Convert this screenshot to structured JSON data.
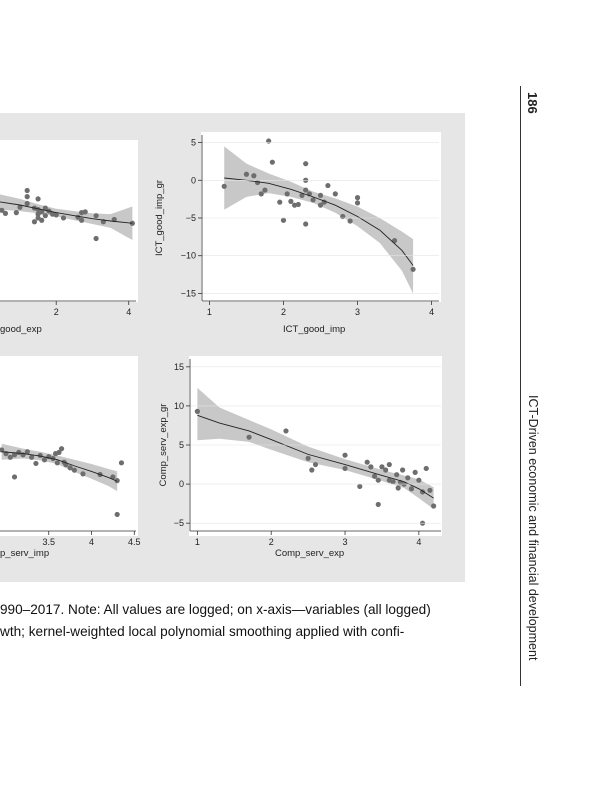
{
  "page": {
    "number": "186",
    "running_head": "ICT-Driven economic and financial development",
    "caption_line_1": "990–2017. Note: All values are logged; on x-axis—variables (all logged)",
    "caption_line_2": "wth; kernel-weighted local polynomial smoothing applied with confi-"
  },
  "colors": {
    "panel_bg": "#e6e6e6",
    "plot_bg": "#ffffff",
    "ci_band": "#c8c8c8",
    "points": "#6e6e6e",
    "fit_line": "#222222"
  },
  "chart_data": [
    {
      "type": "scatter",
      "title": "",
      "xlabel": "good_exp",
      "ylabel": "",
      "xlim": [
        0.45,
        4.2
      ],
      "ylim": [
        -15,
        6
      ],
      "xticks": [
        2,
        4
      ],
      "yticks": [],
      "points": [
        [
          1.2,
          -0.5
        ],
        [
          1.2,
          -1.3
        ],
        [
          1.2,
          -2.2
        ],
        [
          0.9,
          -3.4
        ],
        [
          1.0,
          -2.7
        ],
        [
          1.4,
          -2.8
        ],
        [
          1.5,
          -1.6
        ],
        [
          1.5,
          -3.0
        ],
        [
          1.6,
          -3.3
        ],
        [
          1.7,
          -2.8
        ],
        [
          1.8,
          -3.2
        ],
        [
          1.5,
          -3.6
        ],
        [
          1.5,
          -4.1
        ],
        [
          1.6,
          -4.4
        ],
        [
          1.4,
          -4.6
        ],
        [
          1.7,
          -3.8
        ],
        [
          1.9,
          -3.6
        ],
        [
          2.0,
          -3.7
        ],
        [
          2.2,
          -4.1
        ],
        [
          2.6,
          -4.0
        ],
        [
          2.7,
          -4.4
        ],
        [
          2.8,
          -3.3
        ],
        [
          2.7,
          -3.4
        ],
        [
          3.1,
          -3.8
        ],
        [
          3.3,
          -4.6
        ],
        [
          3.6,
          -4.3
        ],
        [
          4.1,
          -4.8
        ],
        [
          3.1,
          -6.8
        ],
        [
          0.6,
          -3.5
        ],
        [
          0.5,
          -3.1
        ]
      ],
      "fit": [
        [
          0.45,
          -2.0
        ],
        [
          1.0,
          -2.4
        ],
        [
          1.5,
          -2.9
        ],
        [
          2.0,
          -3.4
        ],
        [
          2.5,
          -3.8
        ],
        [
          3.0,
          -4.2
        ],
        [
          3.5,
          -4.5
        ],
        [
          4.1,
          -4.8
        ]
      ],
      "ci_upper": [
        [
          0.45,
          -1.0
        ],
        [
          1.0,
          -1.6
        ],
        [
          1.5,
          -2.3
        ],
        [
          2.0,
          -2.9
        ],
        [
          2.5,
          -3.2
        ],
        [
          3.0,
          -3.5
        ],
        [
          3.5,
          -3.6
        ],
        [
          4.1,
          -2.6
        ]
      ],
      "ci_lower": [
        [
          0.45,
          -3.0
        ],
        [
          1.0,
          -3.2
        ],
        [
          1.5,
          -3.5
        ],
        [
          2.0,
          -3.9
        ],
        [
          2.5,
          -4.4
        ],
        [
          3.0,
          -4.9
        ],
        [
          3.5,
          -5.4
        ],
        [
          4.1,
          -7.0
        ]
      ]
    },
    {
      "type": "scatter",
      "title": "",
      "xlabel": "ICT_good_imp",
      "ylabel": "ICT_good_imp_gr",
      "xlim": [
        0.9,
        4.1
      ],
      "ylim": [
        -16,
        6
      ],
      "xticks": [
        1,
        2,
        3,
        4
      ],
      "yticks": [
        5,
        0,
        -5,
        -10,
        -15
      ],
      "ytick_labels": [
        "5",
        "0",
        "−5",
        "−10",
        "−15"
      ],
      "points": [
        [
          1.2,
          -0.8
        ],
        [
          1.5,
          0.8
        ],
        [
          1.6,
          0.6
        ],
        [
          1.65,
          -0.3
        ],
        [
          1.7,
          -1.8
        ],
        [
          1.75,
          -1.3
        ],
        [
          1.8,
          5.2
        ],
        [
          1.85,
          2.4
        ],
        [
          1.95,
          -2.9
        ],
        [
          2.0,
          -5.3
        ],
        [
          2.05,
          -1.8
        ],
        [
          2.1,
          -2.8
        ],
        [
          2.15,
          -3.3
        ],
        [
          2.2,
          -3.2
        ],
        [
          2.25,
          -2.0
        ],
        [
          2.3,
          0.0
        ],
        [
          2.3,
          -1.3
        ],
        [
          2.3,
          2.2
        ],
        [
          2.35,
          -1.8
        ],
        [
          2.3,
          -5.8
        ],
        [
          2.4,
          -2.6
        ],
        [
          2.5,
          -2.0
        ],
        [
          2.5,
          -3.3
        ],
        [
          2.55,
          -2.9
        ],
        [
          2.6,
          -0.7
        ],
        [
          2.7,
          -1.8
        ],
        [
          2.8,
          -4.8
        ],
        [
          2.9,
          -5.4
        ],
        [
          3.0,
          -3.0
        ],
        [
          3.0,
          -2.3
        ],
        [
          3.5,
          -8.0
        ],
        [
          3.75,
          -11.8
        ]
      ],
      "fit": [
        [
          1.2,
          0.3
        ],
        [
          1.5,
          0.0
        ],
        [
          1.8,
          -0.4
        ],
        [
          2.1,
          -1.2
        ],
        [
          2.4,
          -2.2
        ],
        [
          2.7,
          -3.3
        ],
        [
          3.0,
          -4.8
        ],
        [
          3.3,
          -6.6
        ],
        [
          3.6,
          -9.3
        ],
        [
          3.75,
          -11.3
        ]
      ],
      "ci_upper": [
        [
          1.2,
          4.5
        ],
        [
          1.5,
          2.2
        ],
        [
          1.8,
          0.9
        ],
        [
          2.1,
          -0.2
        ],
        [
          2.4,
          -1.5
        ],
        [
          2.7,
          -2.4
        ],
        [
          3.0,
          -3.5
        ],
        [
          3.3,
          -5.0
        ],
        [
          3.6,
          -6.8
        ],
        [
          3.75,
          -7.8
        ]
      ],
      "ci_lower": [
        [
          1.2,
          -3.9
        ],
        [
          1.5,
          -2.2
        ],
        [
          1.8,
          -1.7
        ],
        [
          2.1,
          -2.2
        ],
        [
          2.4,
          -3.0
        ],
        [
          2.7,
          -4.3
        ],
        [
          3.0,
          -6.1
        ],
        [
          3.3,
          -8.3
        ],
        [
          3.6,
          -12.0
        ],
        [
          3.75,
          -15.0
        ]
      ]
    },
    {
      "type": "scatter",
      "title": "",
      "xlabel": "p_serv_imp",
      "ylabel": "",
      "xlim": [
        2.93,
        4.52
      ],
      "ylim": [
        -8,
        20
      ],
      "xticks": [
        3.5,
        4,
        4.5
      ],
      "yticks": [],
      "points": [
        [
          2.95,
          5.2
        ],
        [
          3.0,
          4.6
        ],
        [
          3.05,
          4.0
        ],
        [
          3.1,
          4.4
        ],
        [
          3.15,
          4.8
        ],
        [
          3.2,
          4.4
        ],
        [
          3.25,
          4.9
        ],
        [
          3.3,
          4.0
        ],
        [
          3.35,
          3.0
        ],
        [
          3.4,
          4.3
        ],
        [
          3.45,
          3.6
        ],
        [
          3.5,
          4.1
        ],
        [
          3.55,
          3.8
        ],
        [
          3.58,
          4.6
        ],
        [
          3.6,
          3.1
        ],
        [
          3.62,
          4.8
        ],
        [
          3.65,
          5.4
        ],
        [
          3.68,
          3.2
        ],
        [
          3.7,
          2.8
        ],
        [
          3.75,
          2.3
        ],
        [
          3.8,
          1.9
        ],
        [
          3.9,
          1.3
        ],
        [
          4.1,
          1.2
        ],
        [
          4.25,
          0.8
        ],
        [
          4.3,
          0.2
        ],
        [
          4.35,
          3.1
        ],
        [
          4.3,
          -5.3
        ],
        [
          3.1,
          0.8
        ]
      ],
      "fit": [
        [
          2.95,
          4.9
        ],
        [
          3.2,
          4.6
        ],
        [
          3.4,
          4.2
        ],
        [
          3.6,
          3.6
        ],
        [
          3.8,
          2.6
        ],
        [
          4.0,
          1.7
        ],
        [
          4.2,
          0.7
        ],
        [
          4.3,
          0.1
        ]
      ],
      "ci_upper": [
        [
          2.95,
          6.2
        ],
        [
          3.2,
          5.4
        ],
        [
          3.4,
          4.9
        ],
        [
          3.6,
          4.3
        ],
        [
          3.8,
          3.6
        ],
        [
          4.0,
          2.9
        ],
        [
          4.2,
          2.1
        ],
        [
          4.3,
          1.7
        ]
      ],
      "ci_lower": [
        [
          2.95,
          3.6
        ],
        [
          3.2,
          3.8
        ],
        [
          3.4,
          3.5
        ],
        [
          3.6,
          2.9
        ],
        [
          3.8,
          1.6
        ],
        [
          4.0,
          0.5
        ],
        [
          4.2,
          -0.7
        ],
        [
          4.3,
          -1.5
        ]
      ]
    },
    {
      "type": "scatter",
      "title": "",
      "xlabel": "Comp_serv_exp",
      "ylabel": "Comp_serv_exp_gr",
      "xlim": [
        0.9,
        4.3
      ],
      "ylim": [
        -6,
        16
      ],
      "xticks": [
        1,
        2,
        3,
        4
      ],
      "yticks": [
        15,
        10,
        5,
        0,
        -5
      ],
      "ytick_labels": [
        "15",
        "10",
        "5",
        "0",
        "−5"
      ],
      "points": [
        [
          1.0,
          9.3
        ],
        [
          1.7,
          6.0
        ],
        [
          2.2,
          6.8
        ],
        [
          2.5,
          3.3
        ],
        [
          2.55,
          1.8
        ],
        [
          2.6,
          2.5
        ],
        [
          3.0,
          3.7
        ],
        [
          3.0,
          2.0
        ],
        [
          3.2,
          -0.3
        ],
        [
          3.3,
          2.8
        ],
        [
          3.35,
          2.2
        ],
        [
          3.4,
          1.0
        ],
        [
          3.45,
          -2.6
        ],
        [
          3.45,
          0.5
        ],
        [
          3.5,
          2.2
        ],
        [
          3.55,
          1.8
        ],
        [
          3.6,
          0.5
        ],
        [
          3.6,
          2.5
        ],
        [
          3.65,
          0.3
        ],
        [
          3.7,
          1.2
        ],
        [
          3.72,
          -0.5
        ],
        [
          3.75,
          0.2
        ],
        [
          3.78,
          1.8
        ],
        [
          3.8,
          0.0
        ],
        [
          3.85,
          0.8
        ],
        [
          3.9,
          -0.6
        ],
        [
          3.95,
          1.5
        ],
        [
          4.0,
          0.5
        ],
        [
          4.05,
          -1.0
        ],
        [
          4.05,
          -5.0
        ],
        [
          4.1,
          2.0
        ],
        [
          4.15,
          -0.8
        ],
        [
          4.2,
          -2.8
        ]
      ],
      "fit": [
        [
          1.0,
          8.8
        ],
        [
          1.3,
          7.8
        ],
        [
          1.7,
          6.8
        ],
        [
          2.0,
          5.7
        ],
        [
          2.5,
          3.8
        ],
        [
          3.0,
          2.5
        ],
        [
          3.5,
          1.1
        ],
        [
          3.8,
          0.3
        ],
        [
          4.0,
          -0.6
        ],
        [
          4.2,
          -1.8
        ]
      ],
      "ci_upper": [
        [
          1.0,
          12.3
        ],
        [
          1.3,
          9.8
        ],
        [
          1.7,
          8.2
        ],
        [
          2.0,
          7.0
        ],
        [
          2.5,
          4.8
        ],
        [
          3.0,
          3.2
        ],
        [
          3.5,
          1.8
        ],
        [
          3.8,
          1.1
        ],
        [
          4.0,
          0.6
        ],
        [
          4.2,
          -0.4
        ]
      ],
      "ci_lower": [
        [
          1.0,
          5.6
        ],
        [
          1.3,
          5.8
        ],
        [
          1.7,
          5.4
        ],
        [
          2.0,
          4.4
        ],
        [
          2.5,
          2.8
        ],
        [
          3.0,
          1.8
        ],
        [
          3.5,
          0.4
        ],
        [
          3.8,
          -0.5
        ],
        [
          4.0,
          -1.8
        ],
        [
          4.2,
          -3.2
        ]
      ]
    }
  ]
}
